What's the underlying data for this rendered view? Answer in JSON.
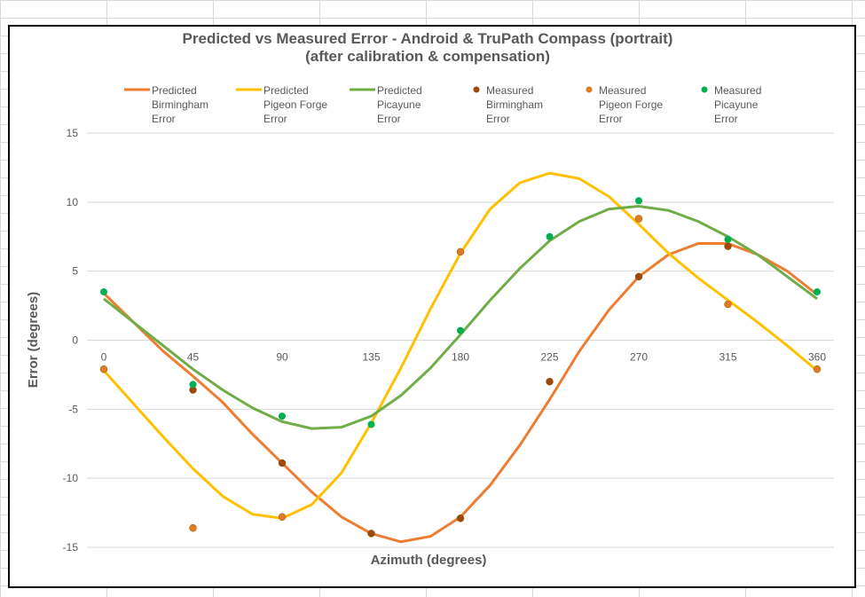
{
  "chart_data": {
    "type": "line",
    "title": "Predicted vs Measured Error - Android & TruPath Compass (portrait)",
    "subtitle": "(after calibration & compensation)",
    "xlabel": "Azimuth (degrees)",
    "ylabel": "Error (degrees)",
    "xlim": [
      0,
      360
    ],
    "ylim": [
      -15,
      15
    ],
    "x_ticks": [
      0,
      45,
      90,
      135,
      180,
      225,
      270,
      315,
      360
    ],
    "y_ticks": [
      15,
      10,
      5,
      0,
      -5,
      -10,
      -15
    ],
    "grid": "horizontal",
    "legend_position": "top",
    "x": [
      0,
      15,
      30,
      45,
      60,
      75,
      90,
      105,
      120,
      135,
      150,
      165,
      180,
      195,
      210,
      225,
      240,
      255,
      270,
      285,
      300,
      315,
      330,
      345,
      360
    ],
    "series": [
      {
        "name": "Predicted Birmingham Error",
        "legend": [
          "Predicted",
          "Birmingham",
          "Error"
        ],
        "kind": "line",
        "color": "#ed7d31",
        "values": [
          3.4,
          1.3,
          -0.8,
          -2.6,
          -4.5,
          -6.8,
          -8.9,
          -11.0,
          -12.8,
          -14.0,
          -14.6,
          -14.2,
          -12.8,
          -10.5,
          -7.6,
          -4.3,
          -0.8,
          2.2,
          4.6,
          6.2,
          7.0,
          7.0,
          6.2,
          5.0,
          3.3
        ]
      },
      {
        "name": "Predicted Pigeon Forge Error",
        "legend": [
          "Predicted",
          "Pigeon Forge",
          "Error"
        ],
        "kind": "line",
        "color": "#ffc000",
        "values": [
          -2.2,
          -4.6,
          -7.0,
          -9.3,
          -11.3,
          -12.6,
          -12.9,
          -11.9,
          -9.6,
          -6.0,
          -2.0,
          2.3,
          6.3,
          9.5,
          11.4,
          12.1,
          11.7,
          10.4,
          8.4,
          6.3,
          4.5,
          2.9,
          1.3,
          -0.4,
          -2.2
        ]
      },
      {
        "name": "Predicted Picayune Error",
        "legend": [
          "Predicted",
          "Picayune",
          "Error"
        ],
        "kind": "line",
        "color": "#70ad47",
        "values": [
          3.0,
          1.3,
          -0.4,
          -2.1,
          -3.6,
          -4.9,
          -5.9,
          -6.4,
          -6.3,
          -5.5,
          -4.0,
          -2.0,
          0.4,
          2.9,
          5.2,
          7.2,
          8.6,
          9.5,
          9.7,
          9.4,
          8.6,
          7.5,
          6.2,
          4.6,
          3.0
        ]
      },
      {
        "name": "Measured Birmingham Error",
        "legend": [
          "Measured",
          "Birmingham",
          "Error"
        ],
        "kind": "scatter",
        "color": "#9e480e",
        "x": [
          45,
          90,
          135,
          180,
          225,
          270,
          315
        ],
        "values": [
          -3.6,
          -8.9,
          -14.0,
          -12.9,
          -3.0,
          4.6,
          6.8
        ]
      },
      {
        "name": "Measured Pigeon Forge Error",
        "legend": [
          "Measured",
          "Pigeon Forge",
          "Error"
        ],
        "kind": "scatter",
        "color": "#e07b24",
        "x": [
          0,
          45,
          90,
          180,
          270,
          315,
          360
        ],
        "values": [
          -2.1,
          -13.6,
          -12.8,
          6.4,
          8.8,
          2.6,
          -2.1
        ]
      },
      {
        "name": "Measured Picayune Error",
        "legend": [
          "Measured",
          "Picayune",
          "Error"
        ],
        "kind": "scatter",
        "color": "#00b050",
        "x": [
          0,
          45,
          90,
          135,
          180,
          225,
          270,
          315,
          360
        ],
        "values": [
          3.5,
          -3.2,
          -5.5,
          -6.1,
          0.7,
          7.5,
          10.1,
          7.3,
          3.5
        ]
      }
    ]
  }
}
